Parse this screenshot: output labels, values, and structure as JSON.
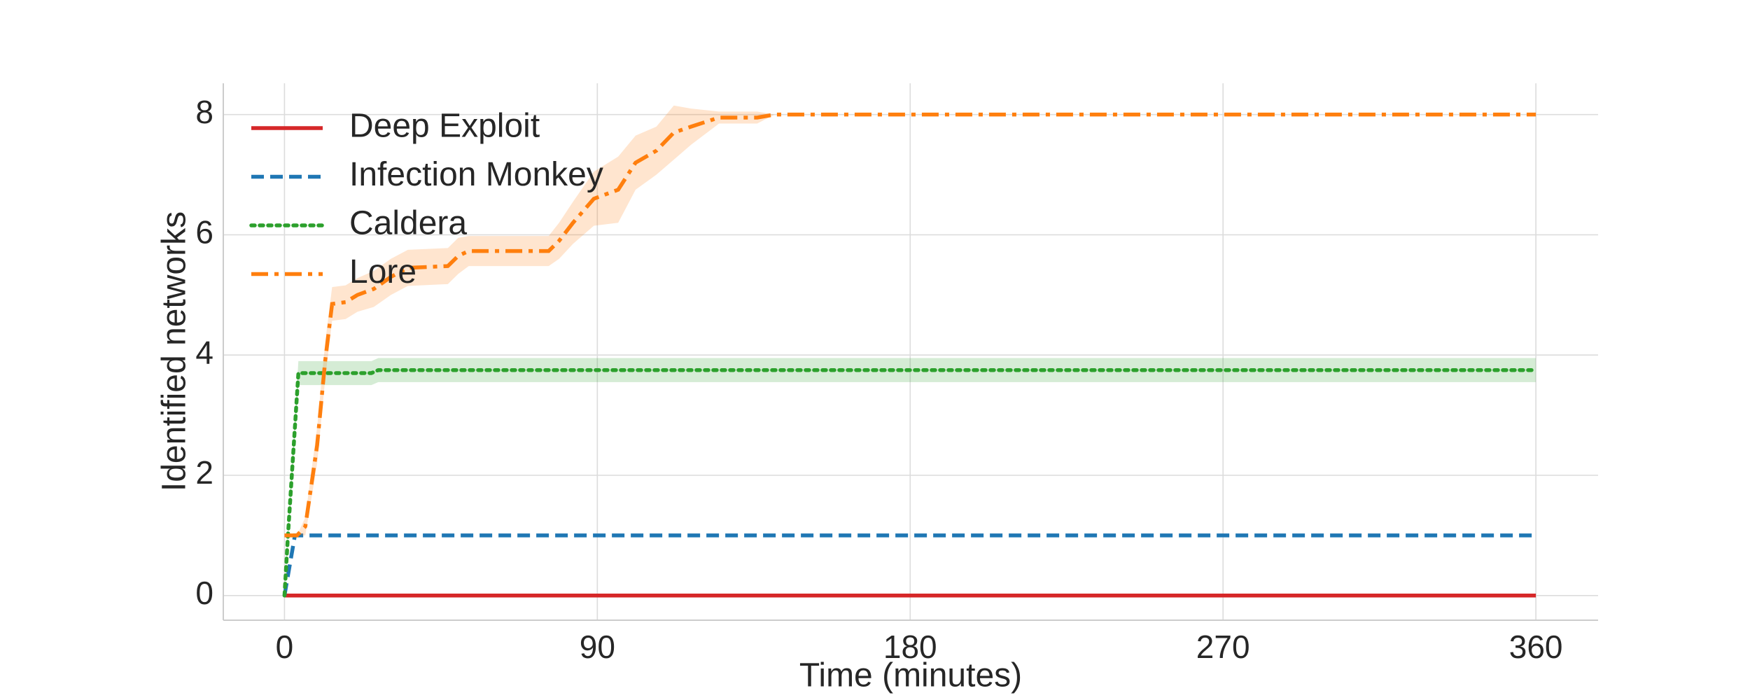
{
  "chart_data": {
    "type": "line",
    "xlabel": "Time (minutes)",
    "ylabel": "Identified networks",
    "xlim": [
      -17.6,
      377.9
    ],
    "ylim": [
      -0.41,
      8.52
    ],
    "xticks": [
      0,
      90,
      180,
      270,
      360
    ],
    "yticks": [
      0,
      2,
      4,
      6,
      8
    ],
    "grid": true,
    "legend": "upper left",
    "series": [
      {
        "name": "Deep Exploit",
        "color": "#d62728",
        "linestyle": "solid",
        "x": [
          0,
          360
        ],
        "values": [
          0,
          0
        ]
      },
      {
        "name": "Infection Monkey",
        "color": "#1f77b4",
        "linestyle": "dashed",
        "x": [
          0,
          3,
          360
        ],
        "values": [
          0,
          1,
          1
        ]
      },
      {
        "name": "Caldera",
        "color": "#2ca02c",
        "linestyle": "dotted",
        "x": [
          0,
          1,
          4,
          25,
          27,
          360
        ],
        "values": [
          0,
          1,
          3.7,
          3.7,
          3.75,
          3.75
        ],
        "band_lower": [
          0,
          1,
          3.5,
          3.5,
          3.55,
          3.55
        ],
        "band_upper": [
          0,
          1,
          3.9,
          3.9,
          3.95,
          3.95
        ]
      },
      {
        "name": "Lore",
        "color": "#ff7f0e",
        "linestyle": "dashdot",
        "x": [
          0,
          3.6,
          6,
          9.4,
          11.7,
          13.7,
          17.6,
          21,
          25.7,
          30.6,
          35.5,
          47,
          50,
          53,
          76,
          79,
          83,
          89,
          96,
          101,
          107,
          112,
          117,
          125,
          136,
          141,
          360
        ],
        "values": [
          1,
          1,
          1.15,
          2.5,
          3.9,
          4.85,
          4.88,
          5,
          5.1,
          5.3,
          5.45,
          5.48,
          5.65,
          5.73,
          5.73,
          5.9,
          6.2,
          6.6,
          6.75,
          7.2,
          7.4,
          7.7,
          7.8,
          7.95,
          7.95,
          8,
          8
        ],
        "band_lower": [
          1,
          1,
          1,
          2.2,
          3.6,
          4.57,
          4.6,
          4.72,
          4.8,
          5,
          5.15,
          5.18,
          5.35,
          5.48,
          5.48,
          5.6,
          5.85,
          6.15,
          6.2,
          6.75,
          7,
          7.25,
          7.5,
          7.85,
          7.85,
          8,
          8
        ],
        "band_upper": [
          1,
          1,
          1.3,
          2.8,
          4.2,
          5.13,
          5.16,
          5.28,
          5.4,
          5.6,
          5.75,
          5.78,
          5.95,
          5.98,
          5.98,
          6.2,
          6.55,
          7.05,
          7.3,
          7.65,
          7.8,
          8.15,
          8.1,
          8.05,
          8.05,
          8,
          8
        ]
      }
    ]
  }
}
